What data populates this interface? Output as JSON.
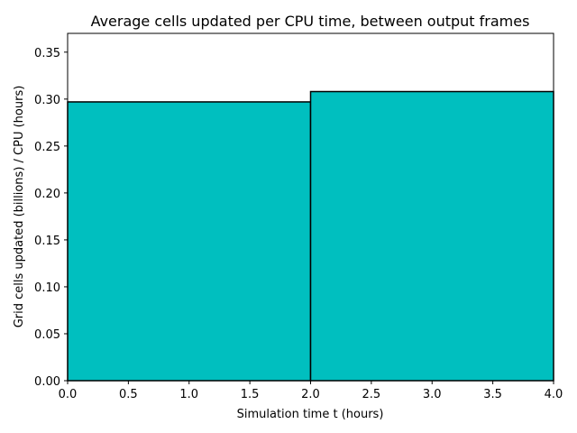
{
  "chart_data": {
    "type": "bar",
    "title": "Average cells updated per CPU time, between output frames",
    "xlabel": "Simulation time t (hours)",
    "ylabel": "Grid cells updated (billions) / CPU (hours)",
    "bins": [
      {
        "x0": 0.0,
        "x1": 2.0,
        "value": 0.297
      },
      {
        "x0": 2.0,
        "x1": 4.0,
        "value": 0.308
      }
    ],
    "xlim": [
      0.0,
      4.0
    ],
    "ylim": [
      0.0,
      0.37
    ],
    "xticks": [
      "0.0",
      "0.5",
      "1.0",
      "1.5",
      "2.0",
      "2.5",
      "3.0",
      "3.5",
      "4.0"
    ],
    "yticks": [
      "0.00",
      "0.05",
      "0.10",
      "0.15",
      "0.20",
      "0.25",
      "0.30",
      "0.35"
    ],
    "bar_color": "#00bfbf",
    "edge_color": "#000000",
    "grid": false,
    "legend": false
  }
}
